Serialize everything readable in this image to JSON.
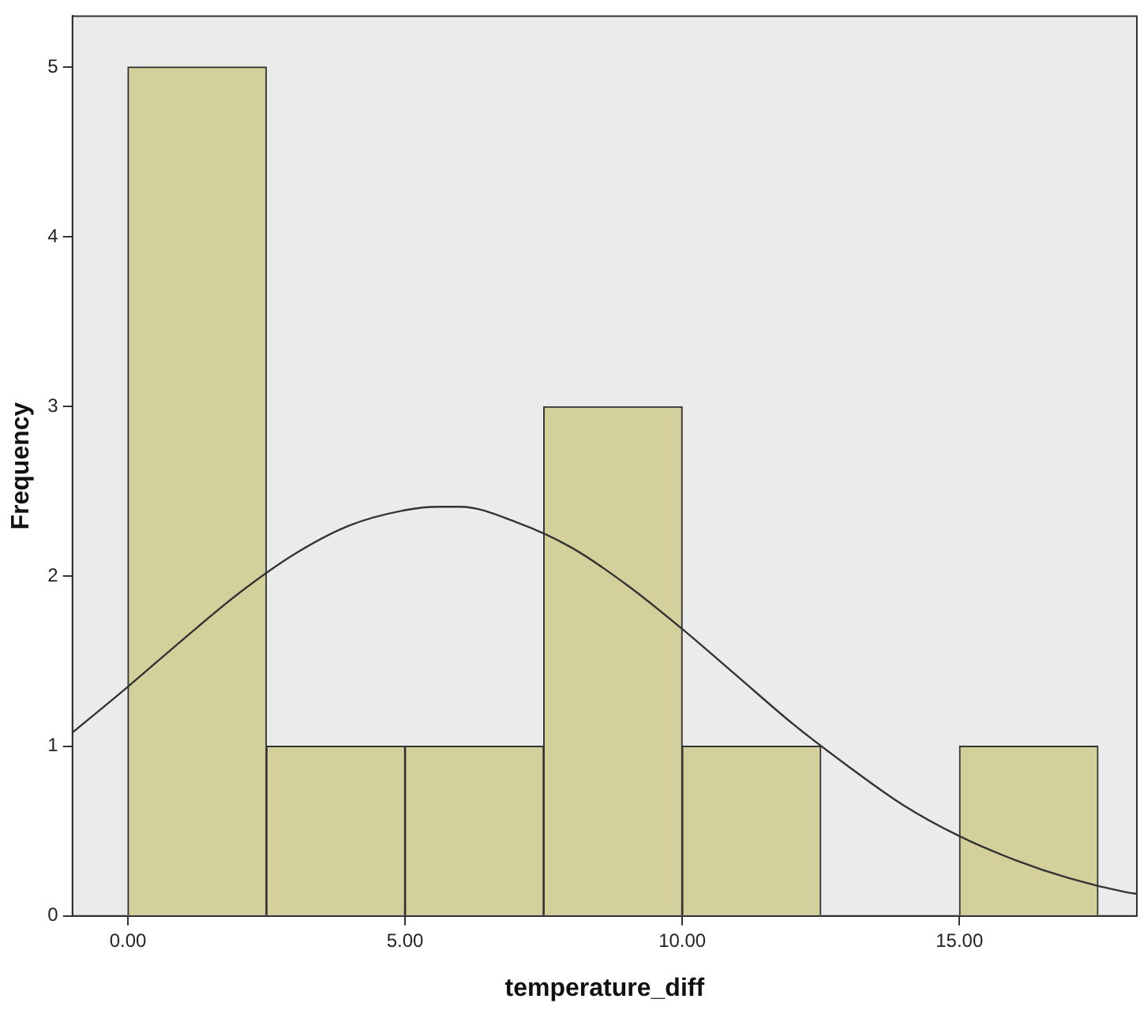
{
  "chart_data": {
    "type": "histogram",
    "xlabel": "temperature_diff",
    "ylabel": "Frequency",
    "bins": [
      0,
      2.5,
      5,
      7.5,
      10,
      12.5,
      15,
      17.5
    ],
    "values": [
      5,
      1,
      1,
      3,
      1,
      0,
      1
    ],
    "color": "#d4d09c",
    "series": [
      {
        "type": "line",
        "color": "#333333",
        "x": [
          -1,
          0,
          1,
          2,
          3,
          4,
          5,
          5.6,
          6,
          7,
          8,
          9,
          10,
          11,
          12,
          13,
          14,
          15,
          16,
          17,
          18,
          18.2
        ],
        "values": [
          1.08,
          1.35,
          1.63,
          1.9,
          2.13,
          2.3,
          2.39,
          2.41,
          2.41,
          2.32,
          2.17,
          1.95,
          1.69,
          1.41,
          1.13,
          0.88,
          0.65,
          0.47,
          0.33,
          0.22,
          0.14,
          0.13
        ]
      }
    ],
    "xlim": [
      -1,
      18.2
    ],
    "ylim": [
      0,
      5.3
    ],
    "xticks": [
      {
        "value": 0,
        "label": "0.00"
      },
      {
        "value": 5,
        "label": "5.00"
      },
      {
        "value": 10,
        "label": "10.00"
      },
      {
        "value": 15,
        "label": "15.00"
      }
    ],
    "yticks": [
      0,
      1,
      2,
      3,
      4,
      5
    ],
    "grid": false,
    "legend": false,
    "marker": "none"
  }
}
